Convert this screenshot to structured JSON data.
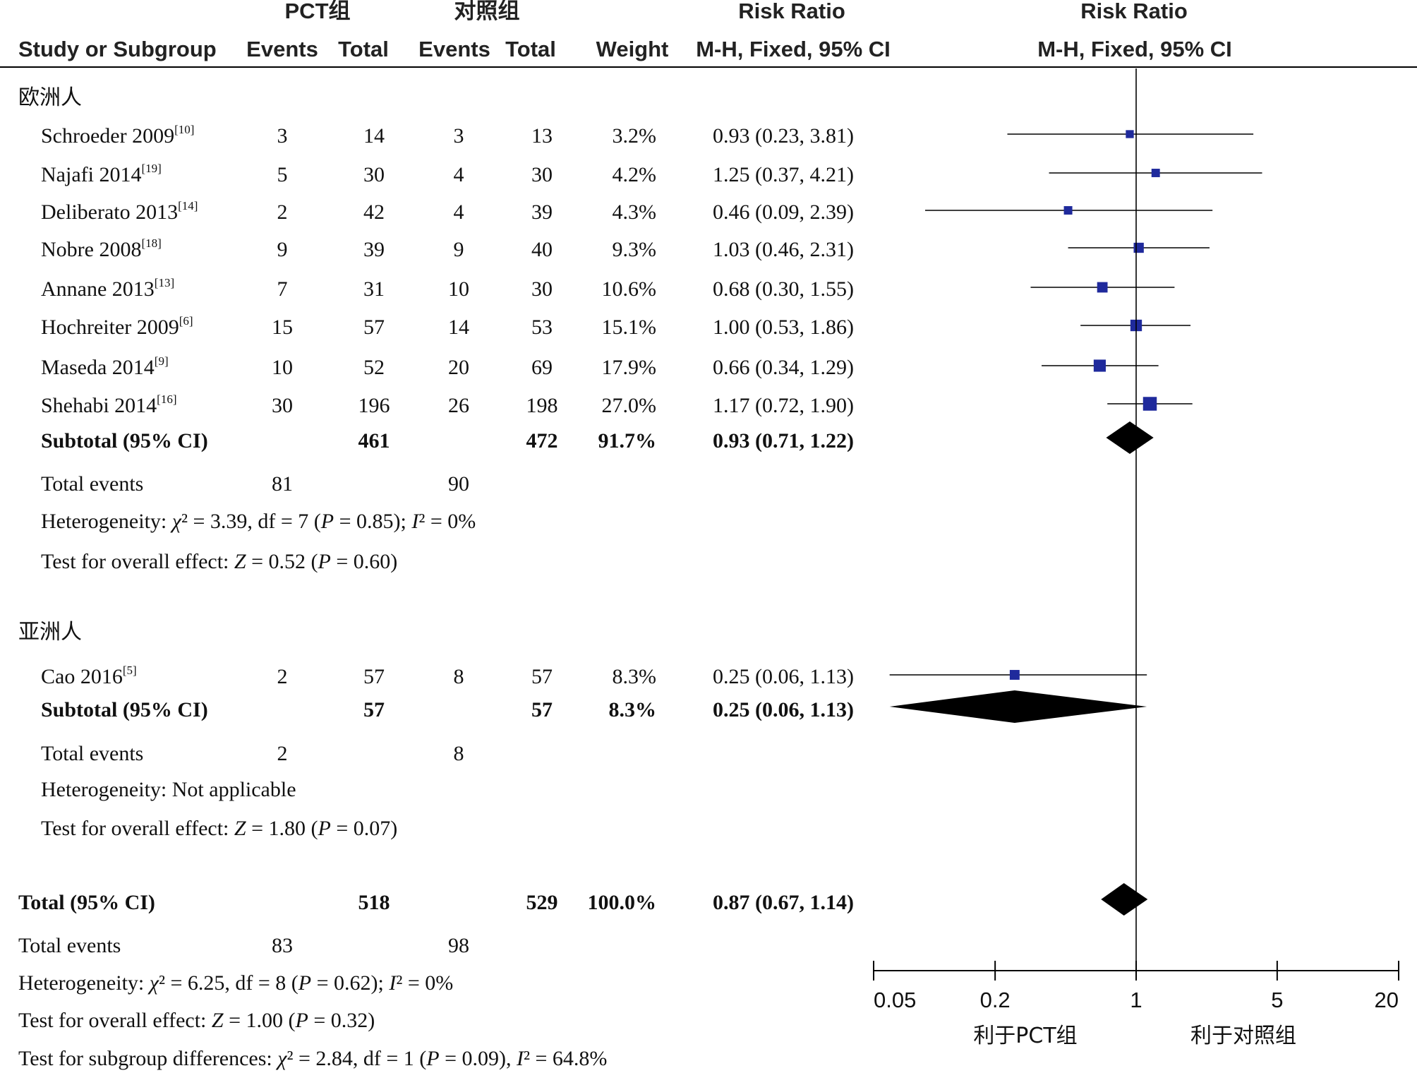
{
  "header": {
    "group1": "PCT组",
    "group2": "对照组",
    "rr_table": "Risk Ratio",
    "rr_plot": "Risk Ratio",
    "study": "Study or Subgroup",
    "events1": "Events",
    "total1": "Total",
    "events2": "Events",
    "total2": "Total",
    "weight": "Weight",
    "method_table": "M-H, Fixed, 95% CI",
    "method_plot": "M-H, Fixed, 95% CI"
  },
  "chart_data": {
    "type": "forest",
    "x_scale": "log",
    "xlim": [
      0.05,
      20
    ],
    "x_ticks": [
      0.05,
      0.2,
      1,
      5,
      20
    ],
    "x_tick_labels": [
      "0.05",
      "0.2",
      "1",
      "5",
      "20"
    ],
    "favours_left": "利于PCT组",
    "favours_right": "利于对照组",
    "null_line": 1,
    "subgroups": [
      {
        "name": "欧洲人",
        "studies": [
          {
            "study": "Schroeder 2009",
            "ref": "[10]",
            "events1": "3",
            "total1": "14",
            "events2": "3",
            "total2": "13",
            "weight": "3.2%",
            "ci_text": "0.93 (0.23, 3.81)",
            "rr": 0.93,
            "lo": 0.23,
            "hi": 3.81,
            "w": 3.2
          },
          {
            "study": "Najafi 2014",
            "ref": "[19]",
            "events1": "5",
            "total1": "30",
            "events2": "4",
            "total2": "30",
            "weight": "4.2%",
            "ci_text": "1.25 (0.37, 4.21)",
            "rr": 1.25,
            "lo": 0.37,
            "hi": 4.21,
            "w": 4.2
          },
          {
            "study": "Deliberato 2013",
            "ref": "[14]",
            "events1": "2",
            "total1": "42",
            "events2": "4",
            "total2": "39",
            "weight": "4.3%",
            "ci_text": "0.46 (0.09, 2.39)",
            "rr": 0.46,
            "lo": 0.09,
            "hi": 2.39,
            "w": 4.3
          },
          {
            "study": "Nobre 2008",
            "ref": "[18]",
            "events1": "9",
            "total1": "39",
            "events2": "9",
            "total2": "40",
            "weight": "9.3%",
            "ci_text": "1.03 (0.46, 2.31)",
            "rr": 1.03,
            "lo": 0.46,
            "hi": 2.31,
            "w": 9.3
          },
          {
            "study": "Annane 2013",
            "ref": "[13]",
            "events1": "7",
            "total1": "31",
            "events2": "10",
            "total2": "30",
            "weight": "10.6%",
            "ci_text": "0.68 (0.30, 1.55)",
            "rr": 0.68,
            "lo": 0.3,
            "hi": 1.55,
            "w": 10.6
          },
          {
            "study": "Hochreiter 2009",
            "ref": "[6]",
            "events1": "15",
            "total1": "57",
            "events2": "14",
            "total2": "53",
            "weight": "15.1%",
            "ci_text": "1.00 (0.53, 1.86)",
            "rr": 1.0,
            "lo": 0.53,
            "hi": 1.86,
            "w": 15.1
          },
          {
            "study": "Maseda 2014",
            "ref": "[9]",
            "events1": "10",
            "total1": "52",
            "events2": "20",
            "total2": "69",
            "weight": "17.9%",
            "ci_text": "0.66 (0.34, 1.29)",
            "rr": 0.66,
            "lo": 0.34,
            "hi": 1.29,
            "w": 17.9
          },
          {
            "study": "Shehabi 2014",
            "ref": "[16]",
            "events1": "30",
            "total1": "196",
            "events2": "26",
            "total2": "198",
            "weight": "27.0%",
            "ci_text": "1.17 (0.72, 1.90)",
            "rr": 1.17,
            "lo": 0.72,
            "hi": 1.9,
            "w": 27.0
          }
        ],
        "subtotal": {
          "label": "Subtotal (95% CI)",
          "total1": "461",
          "total2": "472",
          "weight": "91.7%",
          "ci_text": "0.93 (0.71, 1.22)",
          "rr": 0.93,
          "lo": 0.71,
          "hi": 1.22
        },
        "total_events": {
          "label": "Total events",
          "events1": "81",
          "events2": "90"
        },
        "heterogeneity": "Heterogeneity: χ² = 3.39, df = 7 (P = 0.85); I² = 0%",
        "overall": "Test for overall effect: Z = 0.52 (P = 0.60)"
      },
      {
        "name": "亚洲人",
        "studies": [
          {
            "study": "Cao 2016",
            "ref": "[5]",
            "events1": "2",
            "total1": "57",
            "events2": "8",
            "total2": "57",
            "weight": "8.3%",
            "ci_text": "0.25 (0.06, 1.13)",
            "rr": 0.25,
            "lo": 0.06,
            "hi": 1.13,
            "w": 8.3
          }
        ],
        "subtotal": {
          "label": "Subtotal (95% CI)",
          "total1": "57",
          "total2": "57",
          "weight": "8.3%",
          "ci_text": "0.25 (0.06, 1.13)",
          "rr": 0.25,
          "lo": 0.06,
          "hi": 1.13
        },
        "total_events": {
          "label": "Total events",
          "events1": "2",
          "events2": "8"
        },
        "heterogeneity": "Heterogeneity: Not applicable",
        "overall": "Test for overall effect: Z = 1.80 (P = 0.07)"
      }
    ],
    "total": {
      "label": "Total (95% CI)",
      "total1": "518",
      "total2": "529",
      "weight": "100.0%",
      "ci_text": "0.87 (0.67, 1.14)",
      "rr": 0.87,
      "lo": 0.67,
      "hi": 1.14
    },
    "total_events": {
      "label": "Total events",
      "events1": "83",
      "events2": "98"
    },
    "heterogeneity": "Heterogeneity: χ² = 6.25, df = 8 (P = 0.62); I² = 0%",
    "overall": "Test for overall effect: Z = 1.00 (P = 0.32)",
    "subgroup_diff": "Test for subgroup differences: χ² = 2.84, df = 1 (P = 0.09), I² = 64.8%",
    "colors": {
      "square": "#1f2a9c",
      "diamond": "#000000",
      "line": "#000000"
    }
  }
}
